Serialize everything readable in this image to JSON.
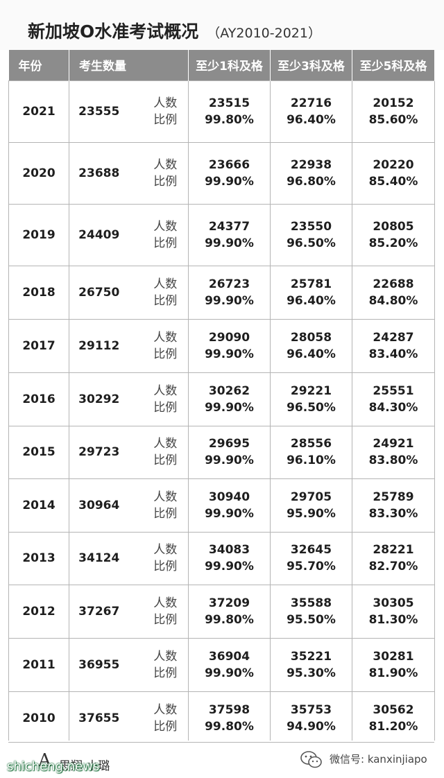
{
  "title": {
    "main": "新加坡O水准考试概况",
    "sub": "（AY2010-2021）"
  },
  "headers": {
    "year": "年份",
    "candidates": "考生数量",
    "col1": "至少1科及格",
    "col2": "至少3科及格",
    "col3": "至少5科及格"
  },
  "metric_labels": {
    "count": "人数",
    "rate": "比例"
  },
  "rows": [
    {
      "year": "2021",
      "candidates": "23555",
      "c1": "23515",
      "r1": "99.80%",
      "c3": "22716",
      "r3": "96.40%",
      "c5": "20152",
      "r5": "85.60%"
    },
    {
      "year": "2020",
      "candidates": "23688",
      "c1": "23666",
      "r1": "99.90%",
      "c3": "22938",
      "r3": "96.80%",
      "c5": "20220",
      "r5": "85.40%"
    },
    {
      "year": "2019",
      "candidates": "24409",
      "c1": "24377",
      "r1": "99.90%",
      "c3": "23550",
      "r3": "96.50%",
      "c5": "20805",
      "r5": "85.20%"
    },
    {
      "year": "2018",
      "candidates": "26750",
      "c1": "26723",
      "r1": "99.90%",
      "c3": "25781",
      "r3": "96.40%",
      "c5": "22688",
      "r5": "84.80%"
    },
    {
      "year": "2017",
      "candidates": "29112",
      "c1": "29090",
      "r1": "99.90%",
      "c3": "28058",
      "r3": "96.40%",
      "c5": "24287",
      "r5": "83.40%"
    },
    {
      "year": "2016",
      "candidates": "30292",
      "c1": "30262",
      "r1": "99.90%",
      "c3": "29221",
      "r3": "96.50%",
      "c5": "25551",
      "r5": "84.30%"
    },
    {
      "year": "2015",
      "candidates": "29723",
      "c1": "29695",
      "r1": "99.90%",
      "c3": "28556",
      "r3": "96.10%",
      "c5": "24921",
      "r5": "83.80%"
    },
    {
      "year": "2014",
      "candidates": "30964",
      "c1": "30940",
      "r1": "99.90%",
      "c3": "29705",
      "r3": "95.90%",
      "c5": "25789",
      "r5": "83.30%"
    },
    {
      "year": "2013",
      "candidates": "34124",
      "c1": "34083",
      "r1": "99.90%",
      "c3": "32645",
      "r3": "95.70%",
      "c5": "28221",
      "r5": "82.70%"
    },
    {
      "year": "2012",
      "candidates": "37267",
      "c1": "37209",
      "r1": "99.80%",
      "c3": "35588",
      "r3": "95.50%",
      "c5": "30305",
      "r5": "81.30%"
    },
    {
      "year": "2011",
      "candidates": "36955",
      "c1": "36904",
      "r1": "99.90%",
      "c3": "35221",
      "r3": "95.30%",
      "c5": "30281",
      "r5": "81.90%"
    },
    {
      "year": "2010",
      "candidates": "37655",
      "c1": "37598",
      "r1": "99.80%",
      "c3": "35753",
      "r3": "94.90%",
      "c5": "30562",
      "r5": "81.20%"
    }
  ],
  "footer": {
    "brand_mark": "A",
    "brand_name": "思翔·小璐",
    "watermark_left": "shicheng.news",
    "watermark_right": "微信号: kanxinjiapo",
    "wechat_icon": "wechat-icon"
  }
}
